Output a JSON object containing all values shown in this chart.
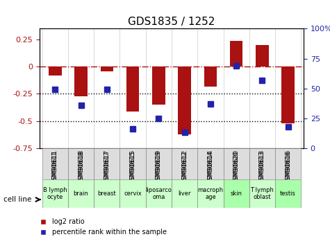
{
  "title": "GDS1835 / 1252",
  "samples": [
    "GSM90611",
    "GSM90618",
    "GSM90617",
    "GSM90615",
    "GSM90619",
    "GSM90612",
    "GSM90614",
    "GSM90620",
    "GSM90613",
    "GSM90616"
  ],
  "cell_lines": [
    "B lymph\nocyte",
    "brain",
    "breast",
    "cervix",
    "liposarco\noma",
    "liver",
    "macroph\nage",
    "skin",
    "T lymph\noblast",
    "testis"
  ],
  "cell_colors": [
    "#ccffcc",
    "#ccffcc",
    "#ccffcc",
    "#ccffcc",
    "#ccffcc",
    "#ccffcc",
    "#ccffcc",
    "#aaffaa",
    "#ccffcc",
    "#aaffaa"
  ],
  "log2_ratio": [
    -0.08,
    -0.27,
    -0.04,
    -0.41,
    -0.35,
    -0.62,
    -0.18,
    0.24,
    0.2,
    -0.52
  ],
  "percentile_rank": [
    49,
    36,
    49,
    16,
    25,
    13,
    37,
    69,
    57,
    18
  ],
  "bar_color": "#aa1111",
  "dot_color": "#2222aa",
  "ylim_left": [
    -0.75,
    0.35
  ],
  "ylim_right": [
    0,
    100
  ],
  "yticks_left": [
    -0.75,
    -0.5,
    -0.25,
    0,
    0.25
  ],
  "yticks_right": [
    0,
    25,
    50,
    75,
    100
  ],
  "hline_dotted": [
    -0.25,
    -0.5
  ],
  "hline_dashdot": 0.0,
  "legend_red": "log2 ratio",
  "legend_blue": "percentile rank within the sample",
  "cell_line_label": "cell line"
}
